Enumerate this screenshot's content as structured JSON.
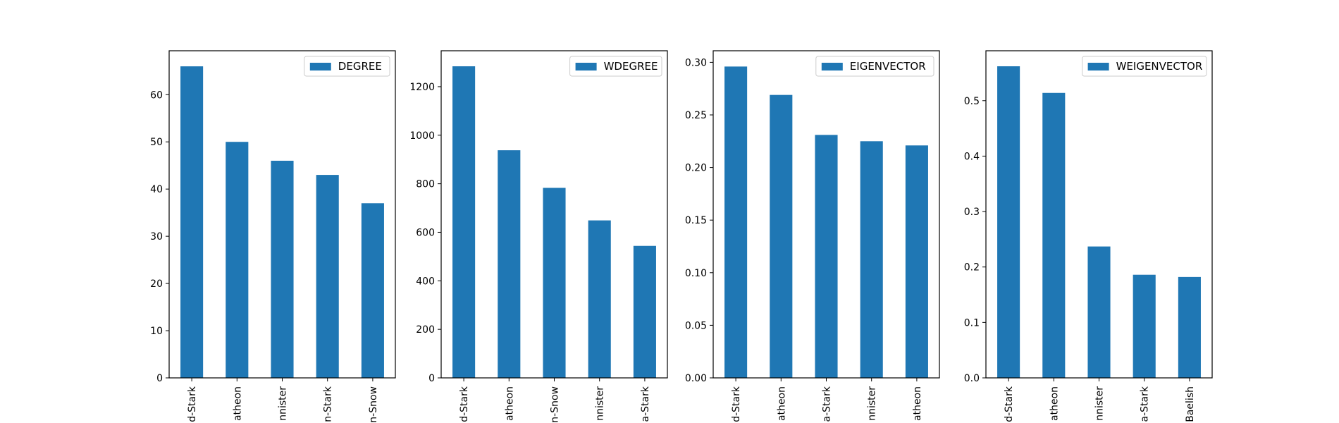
{
  "bar_color": "#1f77b4",
  "chart_data": [
    {
      "type": "bar",
      "legend": "DEGREE",
      "legend_position": "top-right",
      "categories": [
        "d-Stark",
        "atheon",
        "nnister",
        "n-Stark",
        "n-Snow"
      ],
      "values": [
        66,
        50,
        46,
        43,
        37
      ],
      "ylim": [
        0,
        69.3
      ],
      "yticks": [
        0,
        10,
        20,
        30,
        40,
        50,
        60
      ],
      "ytick_labels": [
        "0",
        "10",
        "20",
        "30",
        "40",
        "50",
        "60"
      ]
    },
    {
      "type": "bar",
      "legend": "WDEGREE",
      "legend_position": "top-right",
      "categories": [
        "d-Stark",
        "atheon",
        "n-Snow",
        "nnister",
        "a-Stark"
      ],
      "values": [
        1284,
        938,
        783,
        649,
        544
      ],
      "ylim": [
        0,
        1348
      ],
      "yticks": [
        0,
        200,
        400,
        600,
        800,
        1000,
        1200
      ],
      "ytick_labels": [
        "0",
        "200",
        "400",
        "600",
        "800",
        "1000",
        "1200"
      ]
    },
    {
      "type": "bar",
      "legend": "EIGENVECTOR",
      "legend_position": "top-right",
      "categories": [
        "d-Stark",
        "atheon",
        "a-Stark",
        "nnister",
        "atheon"
      ],
      "values": [
        0.296,
        0.269,
        0.231,
        0.225,
        0.221
      ],
      "ylim": [
        0,
        0.311
      ],
      "yticks": [
        0,
        0.05,
        0.1,
        0.15,
        0.2,
        0.25,
        0.3
      ],
      "ytick_labels": [
        "0.00",
        "0.05",
        "0.10",
        "0.15",
        "0.20",
        "0.25",
        "0.30"
      ]
    },
    {
      "type": "bar",
      "legend": "WEIGENVECTOR",
      "legend_position": "top-right",
      "categories": [
        "d-Stark",
        "atheon",
        "nnister",
        "a-Stark",
        "Baelish"
      ],
      "values": [
        0.562,
        0.514,
        0.237,
        0.186,
        0.182
      ],
      "ylim": [
        0,
        0.59
      ],
      "yticks": [
        0,
        0.1,
        0.2,
        0.3,
        0.4,
        0.5
      ],
      "ytick_labels": [
        "0.0",
        "0.1",
        "0.2",
        "0.3",
        "0.4",
        "0.5"
      ]
    }
  ]
}
